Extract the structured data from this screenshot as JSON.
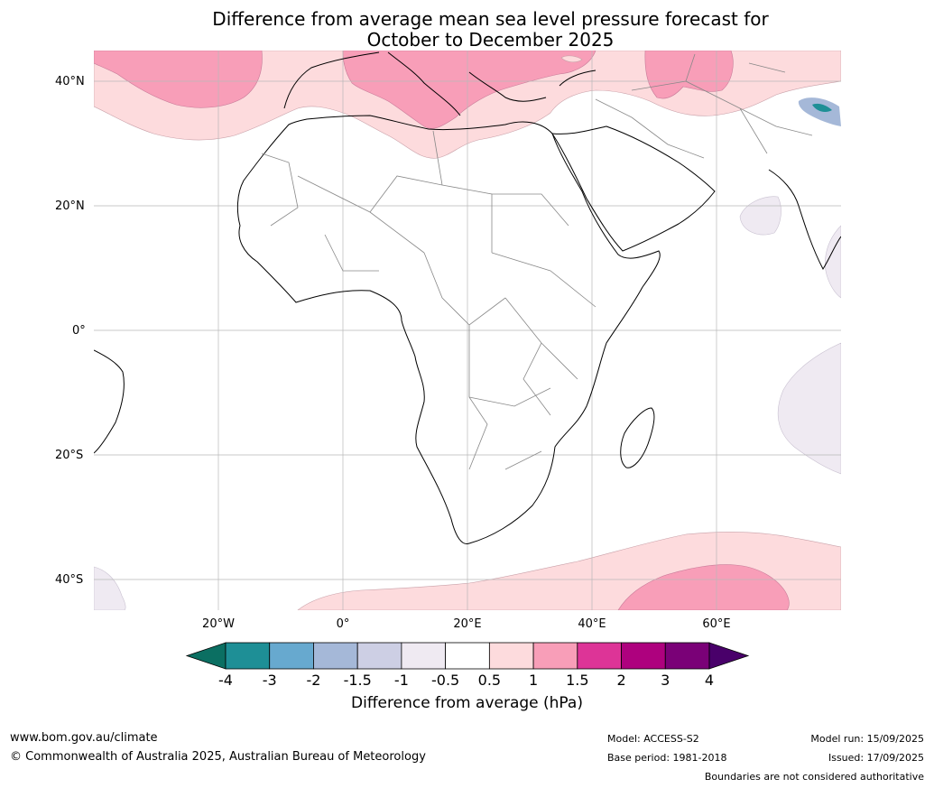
{
  "title_line1": "Difference from average mean sea level pressure forecast for",
  "title_line2": "October to December 2025",
  "lat_labels": [
    "40°N",
    "20°N",
    "0°",
    "20°S",
    "40°S"
  ],
  "lon_labels": [
    "20°W",
    "0°",
    "20°E",
    "40°E",
    "60°E"
  ],
  "colorbar": {
    "ticks": [
      "-4",
      "-3",
      "-2",
      "-1.5",
      "-1",
      "-0.5",
      "0.5",
      "1",
      "1.5",
      "2",
      "3",
      "4"
    ],
    "colors": [
      "#0b6f62",
      "#1e8f96",
      "#67a9cf",
      "#a5b8d8",
      "#cdcfe4",
      "#efeaf2",
      "#ffffff",
      "#fddbdd",
      "#f89eb8",
      "#dd3497",
      "#ae017e",
      "#7a0177",
      "#49006a"
    ],
    "label": "Difference from average (hPa)"
  },
  "footer": {
    "website": "www.bom.gov.au/climate",
    "copyright": "© Commonwealth of Australia 2025, Australian Bureau of Meteorology",
    "model": "Model: ACCESS-S2",
    "base_period": "Base period: 1981-2018",
    "model_run": "Model run: 15/09/2025",
    "issued": "Issued: 17/09/2025",
    "disclaimer": "Boundaries are not considered authoritative"
  }
}
